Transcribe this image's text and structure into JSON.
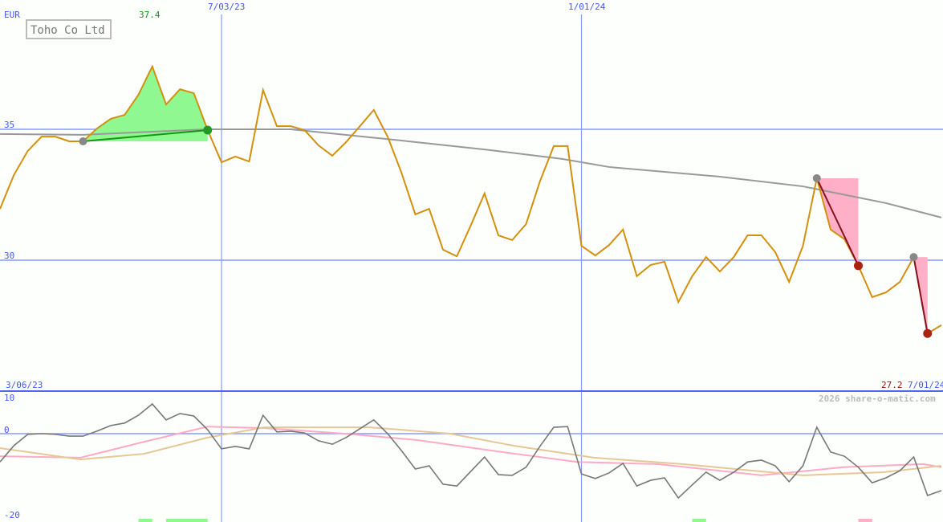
{
  "chart_data": [
    {
      "type": "line",
      "title": "Toho Co Ltd",
      "currency": "EUR",
      "ylim": [
        25.2,
        39.9
      ],
      "y_ticks": [
        "35",
        "30"
      ],
      "y_tick_values": [
        35,
        30
      ],
      "x_tick_labels": [
        "3/06/23",
        "7/03/23",
        "1/01/24",
        "7/01/24"
      ],
      "x_tick_index": [
        -1,
        16,
        42,
        68
      ],
      "max_label": "37.4",
      "last_label": "27.2",
      "grid": true,
      "series": [
        {
          "role": "price",
          "color": "#d4900c",
          "values": [
            31.96,
            33.25,
            34.17,
            34.72,
            34.72,
            34.54,
            34.54,
            35.03,
            35.4,
            35.55,
            36.32,
            37.4,
            35.95,
            36.53,
            36.38,
            34.97,
            33.74,
            33.96,
            33.77,
            36.5,
            35.12,
            35.12,
            34.97,
            34.39,
            33.99,
            34.51,
            35.12,
            35.74,
            34.72,
            33.34,
            31.75,
            31.96,
            30.4,
            30.15,
            31.32,
            32.55,
            30.95,
            30.77,
            31.38,
            33.01,
            34.36,
            34.36,
            30.55,
            30.18,
            30.58,
            31.17,
            29.39,
            29.82,
            29.94,
            28.4,
            29.39,
            30.12,
            29.57,
            30.12,
            30.95,
            30.95,
            30.31,
            29.17,
            30.55,
            33.13,
            31.17,
            30.8,
            29.79,
            28.59,
            28.77,
            29.17,
            30.12,
            27.2,
            27.52
          ]
        },
        {
          "role": "moving-average",
          "color": "#999999",
          "points": [
            [
              0,
              34.82
            ],
            [
              6,
              34.79
            ],
            [
              15,
              35.0
            ],
            [
              21,
              35.0
            ],
            [
              29,
              34.57
            ],
            [
              35,
              34.23
            ],
            [
              40.6,
              33.87
            ],
            [
              44,
              33.56
            ],
            [
              52,
              33.19
            ],
            [
              58,
              32.82
            ],
            [
              64,
              32.18
            ],
            [
              68,
              31.63
            ]
          ]
        }
      ],
      "signals": [
        {
          "type": "buy",
          "from": 6,
          "to": 15,
          "color": "#90f890",
          "line": "#119911"
        },
        {
          "type": "sell",
          "from": 59,
          "to": 62,
          "color": "#ffb0c8",
          "line": "#881122"
        },
        {
          "type": "sell",
          "from": 66,
          "to": 67,
          "color": "#ffb0c8",
          "line": "#881122"
        }
      ]
    },
    {
      "type": "line",
      "ylim": [
        -22.5,
        12.5
      ],
      "y_ticks": [
        "10",
        "0",
        "-20"
      ],
      "y_tick_values": [
        10,
        0,
        -20
      ],
      "series": [
        {
          "role": "oscillator",
          "color": "#777777",
          "values": [
            -8.0,
            -3.4,
            -0.2,
            0,
            -0.2,
            -0.7,
            -0.7,
            0.7,
            2.3,
            3.0,
            5.2,
            8.4,
            3.9,
            5.7,
            5.0,
            1.1,
            -4.3,
            -3.6,
            -4.3,
            5.2,
            0.5,
            0.7,
            0.2,
            -2.0,
            -3.0,
            -1.1,
            1.4,
            3.9,
            0,
            -4.8,
            -10.0,
            -9.1,
            -14.3,
            -14.8,
            -10.7,
            -6.6,
            -11.6,
            -11.8,
            -9.5,
            -3.6,
            1.8,
            2.0,
            -11.4,
            -12.7,
            -11.1,
            -8.4,
            -14.8,
            -13.2,
            -12.5,
            -18.2,
            -14.5,
            -10.9,
            -13.2,
            -10.9,
            -8.0,
            -7.5,
            -9.1,
            -13.6,
            -9.1,
            1.8,
            -5.2,
            -6.4,
            -9.5,
            -13.9,
            -12.5,
            -10.5,
            -6.6,
            -17.5,
            -16.1
          ]
        },
        {
          "role": "signal-pink",
          "color": "#ffaac4",
          "points": [
            [
              0,
              -6.4
            ],
            [
              5.8,
              -6.8
            ],
            [
              10.4,
              -2.3
            ],
            [
              15,
              2.0
            ],
            [
              19.1,
              1.6
            ],
            [
              24.9,
              0
            ],
            [
              30.1,
              -1.8
            ],
            [
              35.9,
              -5.0
            ],
            [
              41.7,
              -8.0
            ],
            [
              47.5,
              -8.6
            ],
            [
              55,
              -11.8
            ],
            [
              60.9,
              -9.5
            ],
            [
              66.7,
              -8.6
            ],
            [
              68,
              -9.5
            ]
          ]
        },
        {
          "role": "signal-tan",
          "color": "#e6c896",
          "points": [
            [
              0,
              -4.1
            ],
            [
              5.8,
              -7.3
            ],
            [
              10.4,
              -5.7
            ],
            [
              15,
              -1.1
            ],
            [
              19.1,
              1.8
            ],
            [
              26.7,
              1.8
            ],
            [
              32.5,
              0
            ],
            [
              37.1,
              -3.4
            ],
            [
              42.9,
              -6.8
            ],
            [
              49.3,
              -8.6
            ],
            [
              58,
              -11.8
            ],
            [
              63.8,
              -10.9
            ],
            [
              68,
              -9.1
            ]
          ]
        }
      ],
      "markers": [
        {
          "color": "#90f890",
          "from": 10,
          "to": 11
        },
        {
          "color": "#90f890",
          "from": 12,
          "to": 15
        },
        {
          "color": "#90f890",
          "from": 50,
          "to": 51
        },
        {
          "color": "#ffb0c8",
          "from": 62,
          "to": 63
        }
      ]
    }
  ],
  "watermark": "2026 share-o-matic.com"
}
